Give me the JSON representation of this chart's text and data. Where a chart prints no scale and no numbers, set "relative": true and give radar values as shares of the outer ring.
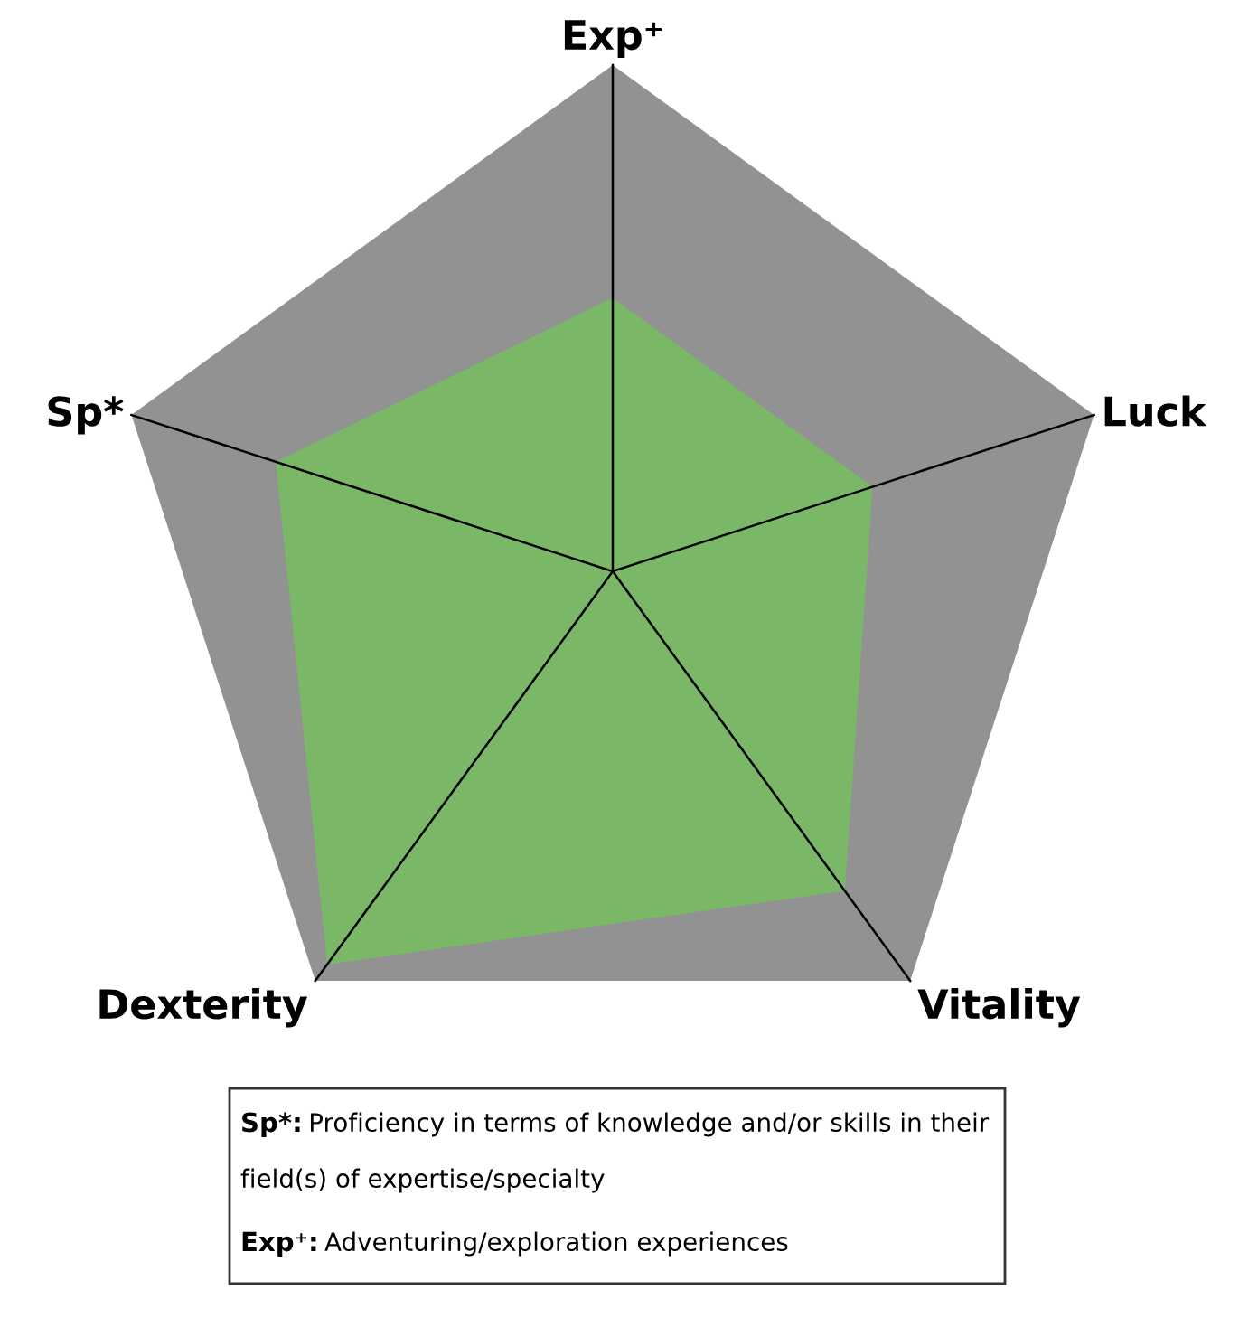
{
  "chart_data": {
    "type": "radar",
    "relative": true,
    "grid": true,
    "categories": [
      "Exp⁺",
      "Luck",
      "Vitality",
      "Dexterity",
      "Sp*"
    ],
    "series": [
      {
        "color": "#7ab868",
        "values": [
          0.54,
          0.54,
          0.78,
          0.96,
          0.7
        ]
      }
    ],
    "annotations": [
      "Sp*: Proficiency in terms of knowledge and/or skills in their field(s) of expertise/specialty",
      "Exp⁺: Adventuring/exploration experiences"
    ]
  }
}
